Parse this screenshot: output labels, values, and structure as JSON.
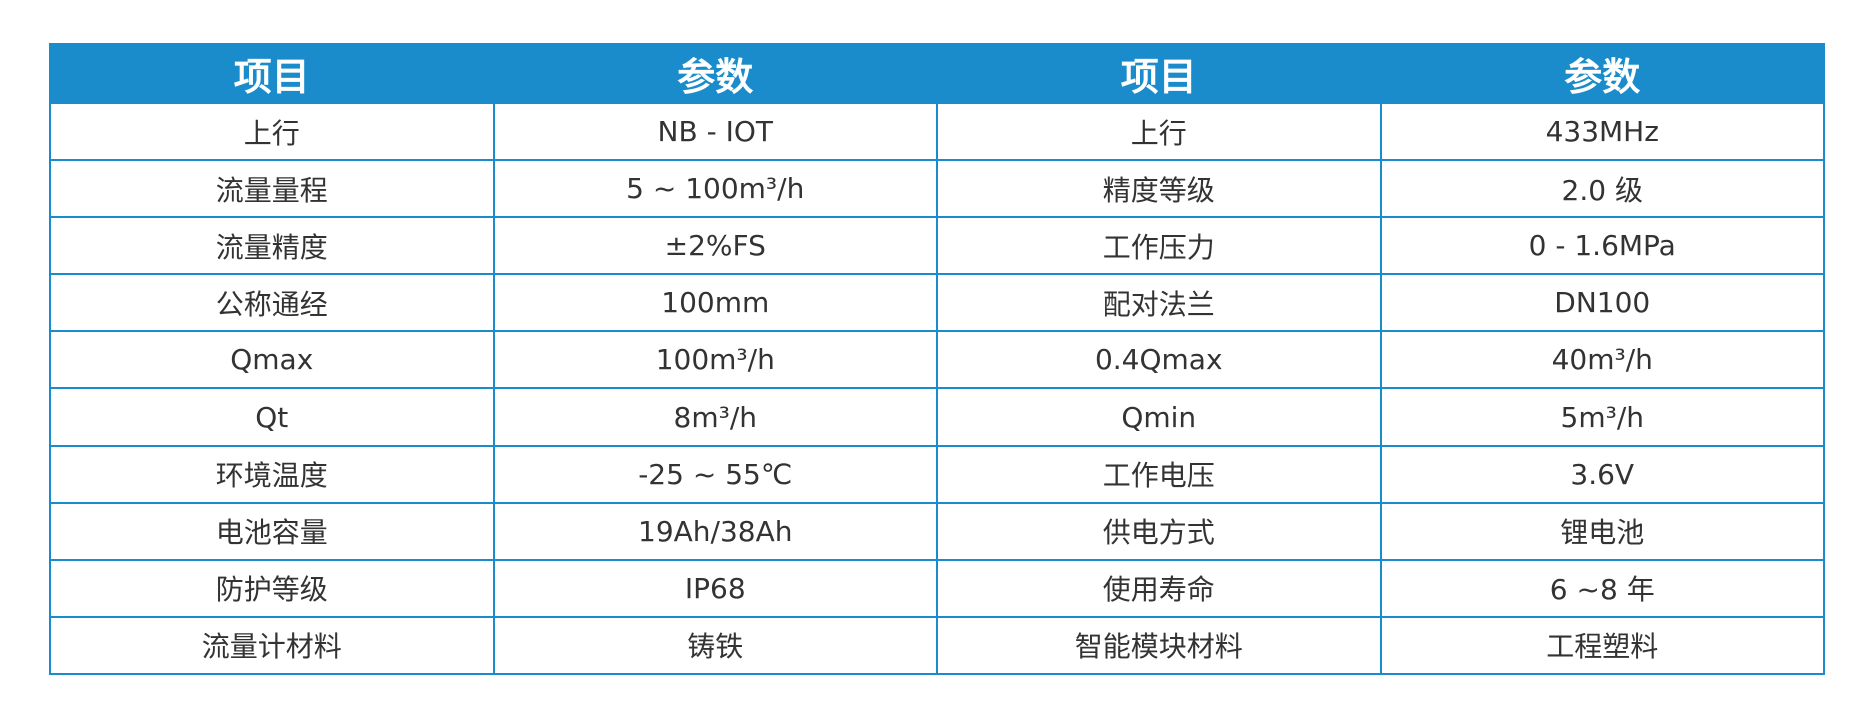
{
  "table": {
    "headers": [
      "项目",
      "参数",
      "项目",
      "参数"
    ],
    "rows": [
      [
        "上行",
        "NB - IOT",
        "上行",
        "433MHz"
      ],
      [
        "流量量程",
        "5 ~ 100m³/h",
        "精度等级",
        "2.0 级"
      ],
      [
        "流量精度",
        "±2%FS",
        "工作压力",
        "0 - 1.6MPa"
      ],
      [
        "公称通经",
        "100mm",
        "配对法兰",
        "DN100"
      ],
      [
        "Qmax",
        "100m³/h",
        "0.4Qmax",
        "40m³/h"
      ],
      [
        "Qt",
        "8m³/h",
        "Qmin",
        "5m³/h"
      ],
      [
        "环境温度",
        "-25 ~ 55℃",
        "工作电压",
        "3.6V"
      ],
      [
        "电池容量",
        "19Ah/38Ah",
        "供电方式",
        "锂电池"
      ],
      [
        "防护等级",
        "IP68",
        "使用寿命",
        "6 ~8 年"
      ],
      [
        "流量计材料",
        "铸铁",
        "智能模块材料",
        "工程塑料"
      ]
    ]
  },
  "colors": {
    "header_bg": "#1a8ccc",
    "border": "#1a8ccc",
    "header_text": "#ffffff",
    "cell_text": "#333333"
  }
}
